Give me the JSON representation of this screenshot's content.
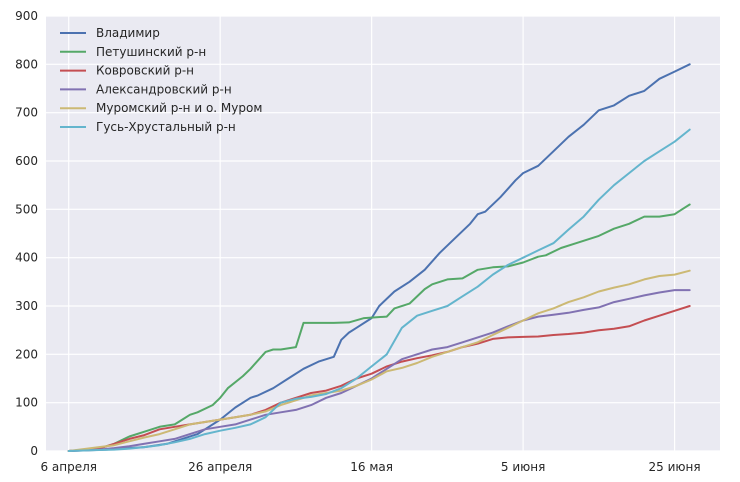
{
  "chart_data": {
    "type": "line",
    "title": "",
    "xlabel": "",
    "ylabel": "",
    "x_ticks": [
      "6 апреля",
      "26 апреля",
      "16 мая",
      "5 июня",
      "25 июня"
    ],
    "x_tick_days": [
      0,
      20,
      40,
      60,
      80
    ],
    "ylim": [
      0,
      900
    ],
    "y_ticks": [
      0,
      100,
      200,
      300,
      400,
      500,
      600,
      700,
      800,
      900
    ],
    "grid": true,
    "legend_position": "top-left",
    "background": "#eaeaf2",
    "series": [
      {
        "name": "Владимир",
        "color": "#4c72b0",
        "points": [
          [
            0,
            0
          ],
          [
            5,
            3
          ],
          [
            10,
            8
          ],
          [
            13,
            15
          ],
          [
            15,
            25
          ],
          [
            17,
            35
          ],
          [
            18,
            45
          ],
          [
            20,
            65
          ],
          [
            22,
            90
          ],
          [
            24,
            110
          ],
          [
            25,
            115
          ],
          [
            27,
            130
          ],
          [
            29,
            150
          ],
          [
            31,
            170
          ],
          [
            33,
            185
          ],
          [
            35,
            195
          ],
          [
            36,
            230
          ],
          [
            37,
            245
          ],
          [
            38,
            255
          ],
          [
            40,
            275
          ],
          [
            41,
            300
          ],
          [
            43,
            330
          ],
          [
            45,
            350
          ],
          [
            47,
            375
          ],
          [
            49,
            410
          ],
          [
            51,
            440
          ],
          [
            53,
            470
          ],
          [
            54,
            490
          ],
          [
            55,
            495
          ],
          [
            57,
            525
          ],
          [
            59,
            560
          ],
          [
            60,
            575
          ],
          [
            62,
            590
          ],
          [
            64,
            620
          ],
          [
            66,
            650
          ],
          [
            68,
            675
          ],
          [
            70,
            705
          ],
          [
            72,
            715
          ],
          [
            74,
            735
          ],
          [
            76,
            745
          ],
          [
            78,
            770
          ],
          [
            80,
            785
          ],
          [
            82,
            800
          ]
        ]
      },
      {
        "name": "Петушинский р-н",
        "color": "#55a868",
        "points": [
          [
            0,
            0
          ],
          [
            4,
            5
          ],
          [
            6,
            15
          ],
          [
            8,
            30
          ],
          [
            10,
            40
          ],
          [
            12,
            50
          ],
          [
            14,
            55
          ],
          [
            15,
            65
          ],
          [
            16,
            75
          ],
          [
            17,
            80
          ],
          [
            19,
            95
          ],
          [
            20,
            110
          ],
          [
            21,
            130
          ],
          [
            23,
            155
          ],
          [
            24,
            170
          ],
          [
            26,
            205
          ],
          [
            27,
            210
          ],
          [
            28,
            210
          ],
          [
            30,
            215
          ],
          [
            31,
            265
          ],
          [
            35,
            265
          ],
          [
            37,
            266
          ],
          [
            39,
            275
          ],
          [
            42,
            278
          ],
          [
            43,
            295
          ],
          [
            45,
            305
          ],
          [
            47,
            335
          ],
          [
            48,
            345
          ],
          [
            50,
            355
          ],
          [
            52,
            357
          ],
          [
            54,
            375
          ],
          [
            56,
            380
          ],
          [
            58,
            382
          ],
          [
            60,
            390
          ],
          [
            62,
            402
          ],
          [
            63,
            405
          ],
          [
            65,
            420
          ],
          [
            67,
            430
          ],
          [
            70,
            445
          ],
          [
            72,
            460
          ],
          [
            74,
            470
          ],
          [
            76,
            485
          ],
          [
            78,
            485
          ],
          [
            80,
            490
          ],
          [
            81,
            500
          ],
          [
            82,
            510
          ]
        ]
      },
      {
        "name": "Ковровский р-н",
        "color": "#c44e52",
        "points": [
          [
            0,
            0
          ],
          [
            4,
            5
          ],
          [
            6,
            15
          ],
          [
            8,
            25
          ],
          [
            10,
            33
          ],
          [
            12,
            45
          ],
          [
            14,
            50
          ],
          [
            16,
            55
          ],
          [
            18,
            60
          ],
          [
            20,
            65
          ],
          [
            22,
            70
          ],
          [
            24,
            75
          ],
          [
            26,
            85
          ],
          [
            28,
            100
          ],
          [
            30,
            110
          ],
          [
            32,
            120
          ],
          [
            34,
            125
          ],
          [
            36,
            135
          ],
          [
            38,
            150
          ],
          [
            40,
            160
          ],
          [
            42,
            175
          ],
          [
            44,
            185
          ],
          [
            46,
            192
          ],
          [
            48,
            198
          ],
          [
            50,
            205
          ],
          [
            52,
            215
          ],
          [
            54,
            222
          ],
          [
            56,
            232
          ],
          [
            58,
            235
          ],
          [
            60,
            236
          ],
          [
            62,
            237
          ],
          [
            64,
            240
          ],
          [
            66,
            242
          ],
          [
            68,
            245
          ],
          [
            70,
            250
          ],
          [
            72,
            253
          ],
          [
            74,
            258
          ],
          [
            76,
            270
          ],
          [
            78,
            280
          ],
          [
            80,
            290
          ],
          [
            82,
            300
          ]
        ]
      },
      {
        "name": "Александровский р-н",
        "color": "#8172b2",
        "points": [
          [
            0,
            0
          ],
          [
            4,
            3
          ],
          [
            6,
            6
          ],
          [
            8,
            10
          ],
          [
            10,
            15
          ],
          [
            12,
            20
          ],
          [
            14,
            25
          ],
          [
            16,
            35
          ],
          [
            18,
            45
          ],
          [
            20,
            50
          ],
          [
            22,
            55
          ],
          [
            24,
            65
          ],
          [
            26,
            75
          ],
          [
            28,
            80
          ],
          [
            30,
            85
          ],
          [
            32,
            95
          ],
          [
            34,
            110
          ],
          [
            36,
            120
          ],
          [
            38,
            135
          ],
          [
            40,
            150
          ],
          [
            42,
            170
          ],
          [
            44,
            190
          ],
          [
            46,
            200
          ],
          [
            48,
            210
          ],
          [
            50,
            215
          ],
          [
            52,
            225
          ],
          [
            54,
            235
          ],
          [
            56,
            245
          ],
          [
            58,
            258
          ],
          [
            60,
            270
          ],
          [
            62,
            278
          ],
          [
            64,
            282
          ],
          [
            66,
            286
          ],
          [
            68,
            292
          ],
          [
            70,
            297
          ],
          [
            72,
            308
          ],
          [
            74,
            315
          ],
          [
            76,
            322
          ],
          [
            78,
            328
          ],
          [
            80,
            333
          ],
          [
            82,
            333
          ]
        ]
      },
      {
        "name": "Муромский р-н и о. Муром",
        "color": "#ccb974",
        "points": [
          [
            0,
            0
          ],
          [
            4,
            8
          ],
          [
            6,
            12
          ],
          [
            8,
            20
          ],
          [
            10,
            28
          ],
          [
            12,
            35
          ],
          [
            14,
            45
          ],
          [
            16,
            55
          ],
          [
            18,
            60
          ],
          [
            20,
            65
          ],
          [
            22,
            70
          ],
          [
            24,
            75
          ],
          [
            26,
            82
          ],
          [
            28,
            95
          ],
          [
            30,
            105
          ],
          [
            32,
            115
          ],
          [
            34,
            120
          ],
          [
            36,
            125
          ],
          [
            38,
            135
          ],
          [
            40,
            148
          ],
          [
            42,
            165
          ],
          [
            44,
            172
          ],
          [
            46,
            182
          ],
          [
            48,
            195
          ],
          [
            50,
            205
          ],
          [
            52,
            215
          ],
          [
            54,
            225
          ],
          [
            56,
            240
          ],
          [
            58,
            255
          ],
          [
            60,
            270
          ],
          [
            62,
            285
          ],
          [
            64,
            295
          ],
          [
            66,
            308
          ],
          [
            68,
            318
          ],
          [
            70,
            330
          ],
          [
            72,
            338
          ],
          [
            74,
            345
          ],
          [
            76,
            355
          ],
          [
            78,
            362
          ],
          [
            80,
            365
          ],
          [
            82,
            373
          ]
        ]
      },
      {
        "name": "Гусь-Хрустальный р-н",
        "color": "#64b5cd",
        "points": [
          [
            0,
            0
          ],
          [
            4,
            2
          ],
          [
            6,
            3
          ],
          [
            8,
            5
          ],
          [
            10,
            8
          ],
          [
            12,
            12
          ],
          [
            14,
            18
          ],
          [
            16,
            25
          ],
          [
            18,
            35
          ],
          [
            20,
            42
          ],
          [
            22,
            48
          ],
          [
            24,
            55
          ],
          [
            26,
            70
          ],
          [
            28,
            100
          ],
          [
            30,
            108
          ],
          [
            32,
            112
          ],
          [
            34,
            118
          ],
          [
            36,
            130
          ],
          [
            38,
            150
          ],
          [
            40,
            175
          ],
          [
            42,
            200
          ],
          [
            44,
            255
          ],
          [
            46,
            280
          ],
          [
            48,
            290
          ],
          [
            50,
            300
          ],
          [
            52,
            320
          ],
          [
            54,
            340
          ],
          [
            56,
            365
          ],
          [
            58,
            385
          ],
          [
            60,
            400
          ],
          [
            62,
            415
          ],
          [
            64,
            430
          ],
          [
            66,
            458
          ],
          [
            68,
            485
          ],
          [
            70,
            520
          ],
          [
            72,
            550
          ],
          [
            74,
            575
          ],
          [
            76,
            600
          ],
          [
            78,
            620
          ],
          [
            80,
            640
          ],
          [
            82,
            665
          ]
        ]
      }
    ]
  }
}
